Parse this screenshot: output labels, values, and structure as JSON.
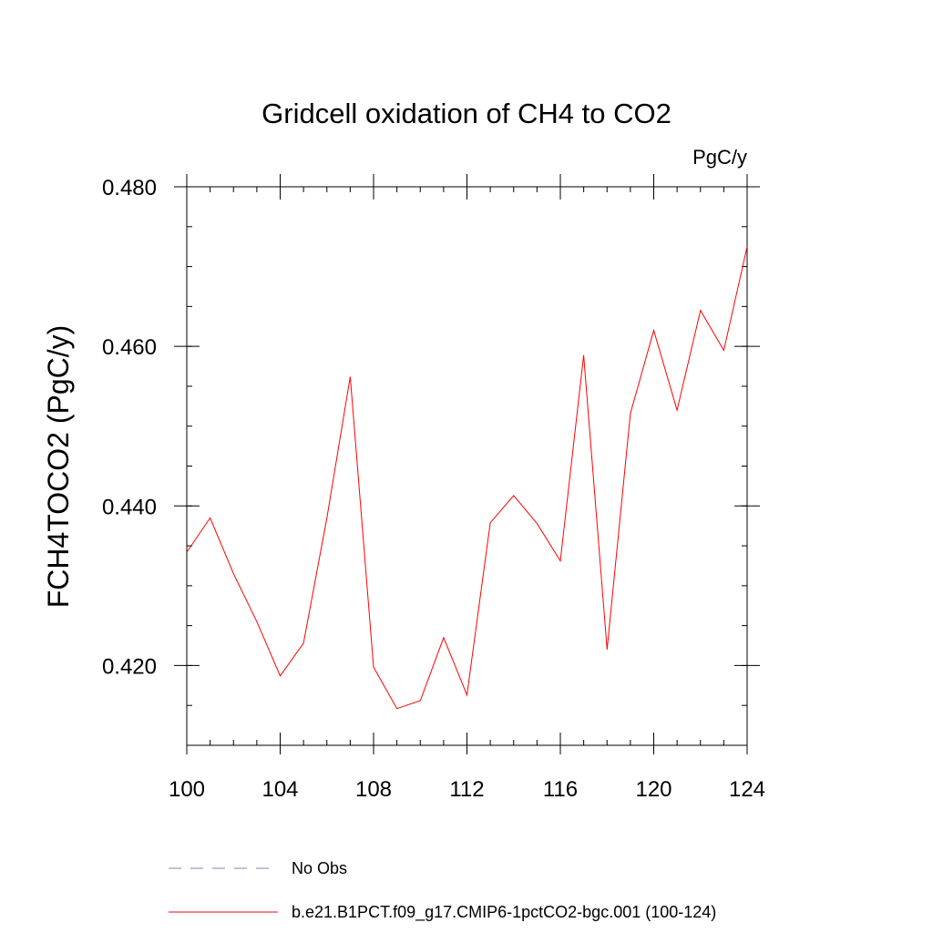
{
  "chart_data": {
    "type": "line",
    "title": "Gridcell oxidation of CH4 to CO2",
    "units_label": "PgC/y",
    "xlabel": "",
    "ylabel": "FCH4TOCO2  (PgC/y)",
    "xlim": [
      100,
      124
    ],
    "ylim": [
      0.41,
      0.48
    ],
    "x_ticks": [
      100,
      104,
      108,
      112,
      116,
      120,
      124
    ],
    "x_tick_labels": [
      "100",
      "104",
      "108",
      "112",
      "116",
      "120",
      "124"
    ],
    "y_ticks": [
      0.42,
      0.44,
      0.46,
      0.48
    ],
    "y_tick_labels": [
      "0.420",
      "0.440",
      "0.460",
      "0.480"
    ],
    "series": [
      {
        "name": "b.e21.B1PCT.f09_g17.CMIP6-1pctCO2-bgc.001 (100-124)",
        "color": "#ff0000",
        "x": [
          100,
          101,
          102,
          103,
          104,
          105,
          106,
          107,
          108,
          109,
          110,
          111,
          112,
          113,
          114,
          115,
          116,
          117,
          118,
          119,
          120,
          121,
          122,
          123,
          124
        ],
        "values": [
          0.4342,
          0.4385,
          0.4315,
          0.4255,
          0.4187,
          0.4228,
          0.4385,
          0.4562,
          0.4198,
          0.4146,
          0.4156,
          0.4235,
          0.4163,
          0.4379,
          0.4413,
          0.4378,
          0.4331,
          0.4589,
          0.422,
          0.4516,
          0.462,
          0.452,
          0.4645,
          0.4595,
          0.4725
        ]
      }
    ],
    "legend": [
      {
        "label": "No Obs",
        "color": "#8080c0",
        "style": "dashed"
      },
      {
        "label": "b.e21.B1PCT.f09_g17.CMIP6-1pctCO2-bgc.001 (100-124)",
        "color": "#ff0000",
        "style": "solid"
      }
    ]
  }
}
